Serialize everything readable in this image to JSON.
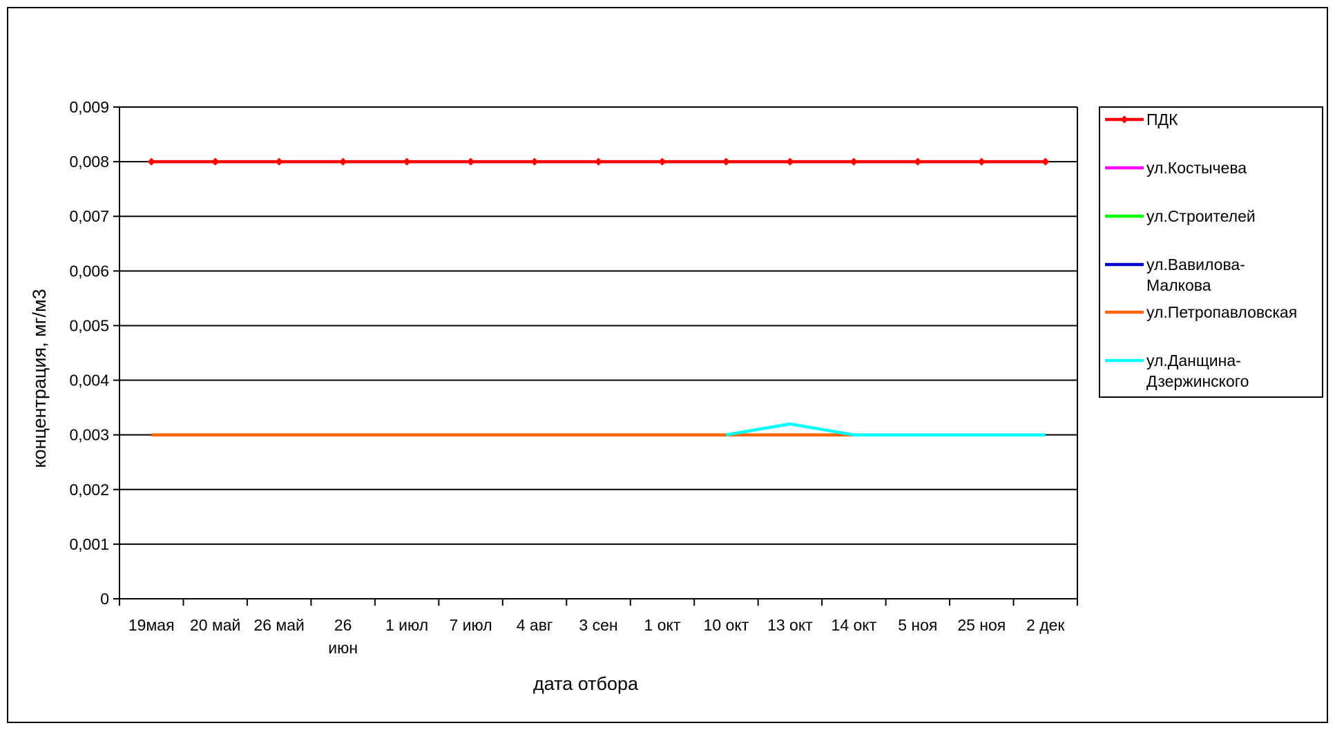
{
  "chart_data": {
    "type": "line",
    "title": "",
    "xlabel": "дата отбора",
    "ylabel": "концентрация, мг/м3",
    "ylim": [
      0,
      0.009
    ],
    "yticks": [
      "0",
      "0,001",
      "0,002",
      "0,003",
      "0,004",
      "0,005",
      "0,006",
      "0,007",
      "0,008",
      "0,009"
    ],
    "yticks_values": [
      0,
      0.001,
      0.002,
      0.003,
      0.004,
      0.005,
      0.006,
      0.007,
      0.008,
      0.009
    ],
    "grid": true,
    "legend_position": "right",
    "categories": [
      [
        "19мая"
      ],
      [
        "20 май"
      ],
      [
        "26 май"
      ],
      [
        "26",
        "июн"
      ],
      [
        "1 июл"
      ],
      [
        "7 июл"
      ],
      [
        "4 авг"
      ],
      [
        "3 сен"
      ],
      [
        "1 окт"
      ],
      [
        "10 окт"
      ],
      [
        "13 окт"
      ],
      [
        "14 окт"
      ],
      [
        "5 ноя"
      ],
      [
        "25 ноя"
      ],
      [
        "2 дек"
      ]
    ],
    "series": [
      {
        "name": "ПДК",
        "color": "#ff0000",
        "markers": true,
        "values": [
          0.008,
          0.008,
          0.008,
          0.008,
          0.008,
          0.008,
          0.008,
          0.008,
          0.008,
          0.008,
          0.008,
          0.008,
          0.008,
          0.008,
          0.008
        ]
      },
      {
        "name": "ул.Костычева",
        "color": "#ff00ff",
        "markers": false,
        "values": [
          0.003,
          0.003,
          0.003,
          0.003,
          0.003,
          0.003,
          0.003,
          0.003,
          0.003,
          0.003,
          0.003,
          0.003,
          0.003,
          0.003,
          0.003
        ]
      },
      {
        "name": "ул.Строителей",
        "color": "#00ff00",
        "markers": false,
        "values": [
          0.003,
          0.003,
          0.003,
          0.003,
          0.003,
          0.003,
          0.003,
          0.003,
          0.003,
          0.003,
          0.003,
          0.003,
          0.003,
          0.003,
          0.003
        ]
      },
      {
        "name": [
          "ул.Вавилова-",
          "Малкова"
        ],
        "color": "#0000cc",
        "markers": false,
        "values": [
          0.003,
          0.003,
          0.003,
          0.003,
          0.003,
          0.003,
          0.003,
          0.003,
          0.003,
          0.003,
          0.003,
          0.003,
          0.003,
          0.003,
          0.003
        ]
      },
      {
        "name": "ул.Петропавловская",
        "color": "#ff6600",
        "markers": false,
        "values": [
          0.003,
          0.003,
          0.003,
          0.003,
          0.003,
          0.003,
          0.003,
          0.003,
          0.003,
          0.003,
          0.003,
          0.003,
          0.003,
          0.003,
          0.003
        ]
      },
      {
        "name": [
          "ул.Данщина-",
          "Дзержинского"
        ],
        "color": "#00ffff",
        "markers": false,
        "values": [
          null,
          null,
          null,
          null,
          null,
          null,
          null,
          null,
          null,
          0.003,
          0.0032,
          0.003,
          0.003,
          0.003,
          0.003
        ]
      }
    ]
  }
}
